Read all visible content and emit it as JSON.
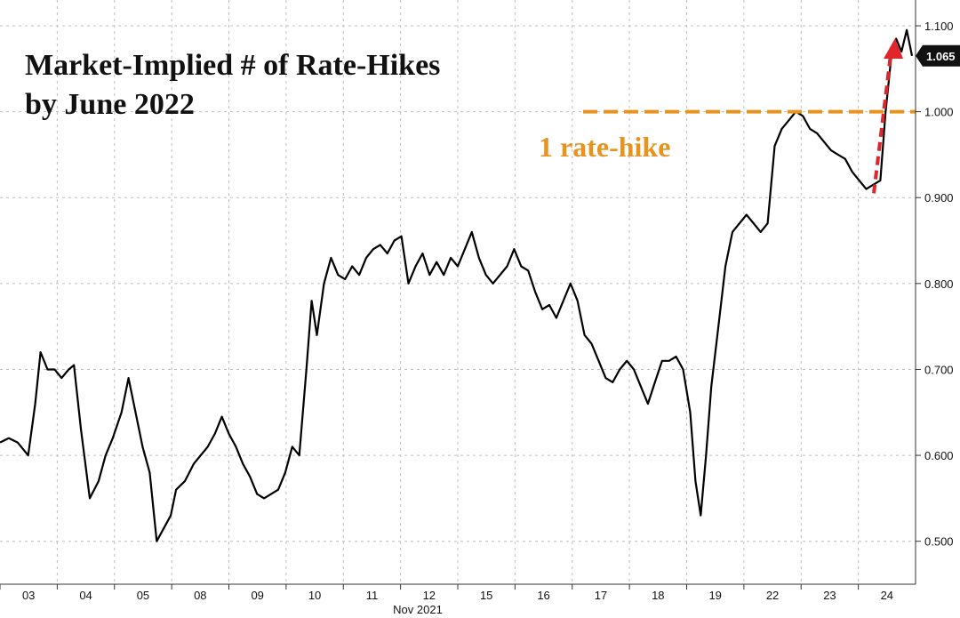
{
  "chart_data": {
    "type": "line",
    "title": "Market-Implied # of Rate-Hikes",
    "subtitle": "by June 2022",
    "x_sublabel": "Nov 2021",
    "categories": [
      "03",
      "04",
      "05",
      "08",
      "09",
      "10",
      "11",
      "12",
      "15",
      "16",
      "17",
      "18",
      "19",
      "22",
      "23",
      "24"
    ],
    "ylim": [
      0.45,
      1.13
    ],
    "y_ticks": [
      "0.500",
      "0.600",
      "0.700",
      "0.800",
      "0.900",
      "1.000",
      "1.100"
    ],
    "grid": true,
    "series": [
      {
        "values": [
          [
            0.0,
            0.615
          ],
          [
            0.25,
            0.62
          ],
          [
            0.5,
            0.615
          ],
          [
            0.8,
            0.6
          ],
          [
            1.0,
            0.66
          ],
          [
            1.15,
            0.72
          ],
          [
            1.35,
            0.7
          ],
          [
            1.55,
            0.7
          ],
          [
            1.75,
            0.69
          ],
          [
            1.95,
            0.7
          ],
          [
            2.1,
            0.705
          ],
          [
            2.3,
            0.63
          ],
          [
            2.55,
            0.55
          ],
          [
            2.8,
            0.57
          ],
          [
            3.0,
            0.6
          ],
          [
            3.2,
            0.62
          ],
          [
            3.45,
            0.65
          ],
          [
            3.65,
            0.69
          ],
          [
            3.85,
            0.65
          ],
          [
            4.05,
            0.61
          ],
          [
            4.25,
            0.58
          ],
          [
            4.45,
            0.5
          ],
          [
            4.65,
            0.515
          ],
          [
            4.85,
            0.53
          ],
          [
            5.0,
            0.56
          ],
          [
            5.25,
            0.57
          ],
          [
            5.5,
            0.59
          ],
          [
            5.7,
            0.6
          ],
          [
            5.9,
            0.61
          ],
          [
            6.1,
            0.625
          ],
          [
            6.3,
            0.645
          ],
          [
            6.5,
            0.625
          ],
          [
            6.7,
            0.61
          ],
          [
            6.9,
            0.59
          ],
          [
            7.1,
            0.575
          ],
          [
            7.3,
            0.555
          ],
          [
            7.5,
            0.55
          ],
          [
            7.7,
            0.555
          ],
          [
            7.9,
            0.56
          ],
          [
            8.1,
            0.58
          ],
          [
            8.3,
            0.61
          ],
          [
            8.5,
            0.6
          ],
          [
            8.7,
            0.7
          ],
          [
            8.85,
            0.78
          ],
          [
            9.0,
            0.74
          ],
          [
            9.2,
            0.8
          ],
          [
            9.4,
            0.83
          ],
          [
            9.6,
            0.81
          ],
          [
            9.8,
            0.805
          ],
          [
            10.0,
            0.82
          ],
          [
            10.2,
            0.81
          ],
          [
            10.4,
            0.83
          ],
          [
            10.6,
            0.84
          ],
          [
            10.8,
            0.845
          ],
          [
            11.0,
            0.835
          ],
          [
            11.2,
            0.85
          ],
          [
            11.4,
            0.855
          ],
          [
            11.6,
            0.8
          ],
          [
            11.8,
            0.82
          ],
          [
            12.0,
            0.835
          ],
          [
            12.2,
            0.81
          ],
          [
            12.4,
            0.825
          ],
          [
            12.6,
            0.81
          ],
          [
            12.8,
            0.83
          ],
          [
            13.0,
            0.82
          ],
          [
            13.2,
            0.84
          ],
          [
            13.4,
            0.86
          ],
          [
            13.6,
            0.83
          ],
          [
            13.8,
            0.81
          ],
          [
            14.0,
            0.8
          ],
          [
            14.2,
            0.81
          ],
          [
            14.4,
            0.82
          ],
          [
            14.6,
            0.84
          ],
          [
            14.8,
            0.82
          ],
          [
            15.0,
            0.815
          ],
          [
            15.2,
            0.79
          ],
          [
            15.4,
            0.77
          ],
          [
            15.6,
            0.775
          ],
          [
            15.8,
            0.76
          ],
          [
            16.0,
            0.78
          ],
          [
            16.2,
            0.8
          ],
          [
            16.4,
            0.78
          ],
          [
            16.6,
            0.74
          ],
          [
            16.8,
            0.73
          ],
          [
            17.0,
            0.71
          ],
          [
            17.2,
            0.69
          ],
          [
            17.4,
            0.685
          ],
          [
            17.6,
            0.7
          ],
          [
            17.8,
            0.71
          ],
          [
            18.0,
            0.7
          ],
          [
            18.2,
            0.68
          ],
          [
            18.4,
            0.66
          ],
          [
            18.6,
            0.685
          ],
          [
            18.8,
            0.71
          ],
          [
            19.0,
            0.71
          ],
          [
            19.2,
            0.715
          ],
          [
            19.4,
            0.7
          ],
          [
            19.6,
            0.65
          ],
          [
            19.75,
            0.57
          ],
          [
            19.9,
            0.53
          ],
          [
            20.05,
            0.6
          ],
          [
            20.2,
            0.68
          ],
          [
            20.4,
            0.75
          ],
          [
            20.6,
            0.82
          ],
          [
            20.8,
            0.86
          ],
          [
            21.0,
            0.87
          ],
          [
            21.2,
            0.88
          ],
          [
            21.4,
            0.87
          ],
          [
            21.6,
            0.86
          ],
          [
            21.8,
            0.87
          ],
          [
            22.0,
            0.96
          ],
          [
            22.2,
            0.98
          ],
          [
            22.4,
            0.99
          ],
          [
            22.6,
            1.0
          ],
          [
            22.8,
            0.995
          ],
          [
            23.0,
            0.98
          ],
          [
            23.2,
            0.975
          ],
          [
            23.4,
            0.965
          ],
          [
            23.6,
            0.955
          ],
          [
            23.8,
            0.95
          ],
          [
            24.0,
            0.945
          ],
          [
            24.2,
            0.93
          ],
          [
            24.4,
            0.92
          ],
          [
            24.6,
            0.91
          ],
          [
            24.8,
            0.915
          ],
          [
            25.0,
            0.92
          ],
          [
            25.15,
            1.0
          ],
          [
            25.3,
            1.06
          ],
          [
            25.45,
            1.085
          ],
          [
            25.6,
            1.07
          ],
          [
            25.75,
            1.095
          ],
          [
            25.9,
            1.065
          ]
        ]
      }
    ],
    "reference_line": {
      "value": 1.0,
      "label": "1 rate-hike"
    },
    "last_value_label": "1.065",
    "colors": {
      "line": "#000000",
      "grid": "#bdbdbd",
      "reference": "#e8931f",
      "arrow": "#e0262a",
      "badge": "#111111"
    }
  }
}
